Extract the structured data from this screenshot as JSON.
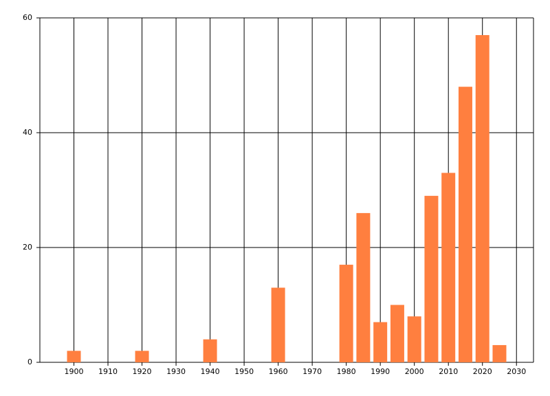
{
  "chart_data": {
    "type": "bar",
    "x": [
      1900,
      1920,
      1940,
      1960,
      1980,
      1985,
      1990,
      1995,
      2000,
      2005,
      2010,
      2015,
      2020,
      2025
    ],
    "values": [
      2,
      2,
      4,
      13,
      17,
      26,
      7,
      10,
      8,
      29,
      33,
      48,
      57,
      3
    ],
    "color": "#ff7f3f",
    "xlim": [
      1890,
      2035
    ],
    "xticks": [
      1900,
      1910,
      1920,
      1930,
      1940,
      1950,
      1960,
      1970,
      1980,
      1990,
      2000,
      2010,
      2020,
      2030
    ],
    "ylim": [
      0,
      60
    ],
    "yticks": [
      0,
      20,
      40,
      60
    ],
    "grid": true
  }
}
